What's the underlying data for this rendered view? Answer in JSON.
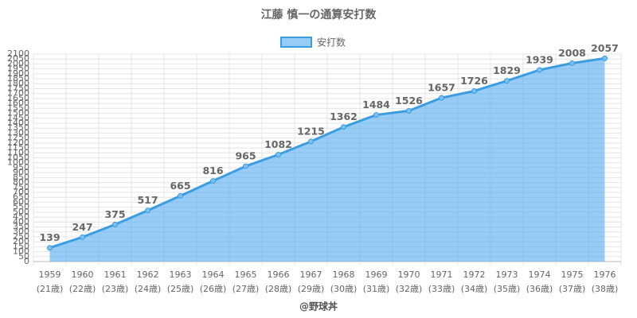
{
  "chart_data": {
    "type": "line",
    "title": "江藤 慎一の通算安打数",
    "footer": "@野球丼",
    "categories": [
      [
        "1959",
        "(21歳)"
      ],
      [
        "1960",
        "(22歳)"
      ],
      [
        "1961",
        "(23歳)"
      ],
      [
        "1962",
        "(24歳)"
      ],
      [
        "1963",
        "(25歳)"
      ],
      [
        "1964",
        "(26歳)"
      ],
      [
        "1965",
        "(27歳)"
      ],
      [
        "1966",
        "(28歳)"
      ],
      [
        "1967",
        "(29歳)"
      ],
      [
        "1968",
        "(30歳)"
      ],
      [
        "1969",
        "(31歳)"
      ],
      [
        "1970",
        "(32歳)"
      ],
      [
        "1971",
        "(33歳)"
      ],
      [
        "1972",
        "(34歳)"
      ],
      [
        "1973",
        "(35歳)"
      ],
      [
        "1974",
        "(36歳)"
      ],
      [
        "1975",
        "(37歳)"
      ],
      [
        "1976",
        "(38歳)"
      ]
    ],
    "series": [
      {
        "name": "安打数",
        "color": "#3b9de0",
        "fill": "rgba(80,170,240,0.6)",
        "values": [
          139,
          247,
          375,
          517,
          665,
          816,
          965,
          1082,
          1215,
          1362,
          1484,
          1526,
          1657,
          1726,
          1829,
          1939,
          2008,
          2057
        ]
      }
    ],
    "ylim": [
      0,
      2100
    ],
    "yticks": [
      0,
      50,
      100,
      150,
      200,
      250,
      300,
      350,
      400,
      450,
      500,
      550,
      600,
      650,
      700,
      750,
      800,
      850,
      900,
      950,
      1000,
      1050,
      1100,
      1150,
      1200,
      1250,
      1300,
      1350,
      1400,
      1450,
      1500,
      1550,
      1600,
      1650,
      1700,
      1750,
      1800,
      1850,
      1900,
      1950,
      2000,
      2050,
      2100
    ],
    "grid": true
  }
}
